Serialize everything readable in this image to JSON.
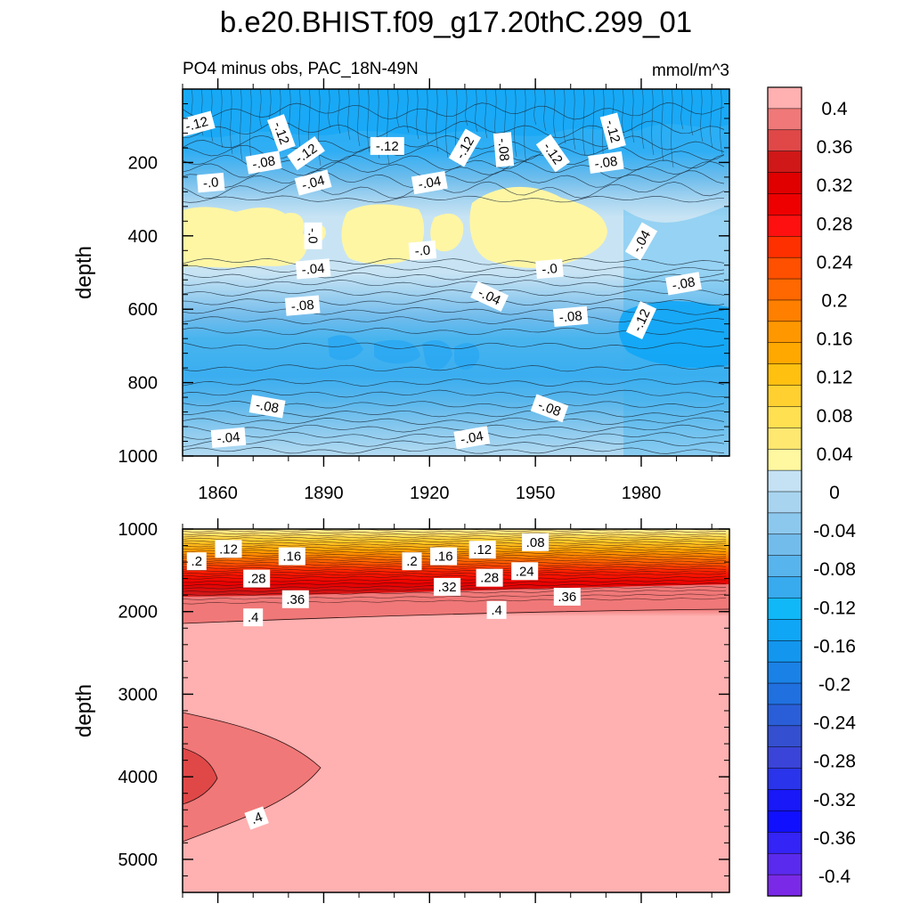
{
  "title": "b.e20.BHIST.f09_g17.20thC.299_01",
  "subtitle_left": "PO4 minus obs, PAC_18N-49N",
  "units": "mmol/m^3",
  "colorbar": {
    "labels": [
      "0.4",
      "0.36",
      "0.32",
      "0.28",
      "0.24",
      "0.2",
      "0.16",
      "0.12",
      "0.08",
      "0.04",
      "0",
      "-0.04",
      "-0.08",
      "-0.12",
      "-0.16",
      "-0.2",
      "-0.24",
      "-0.28",
      "-0.32",
      "-0.36",
      "-0.4"
    ],
    "colors_top_to_bottom": [
      "#ffb0b0",
      "#f07878",
      "#e04848",
      "#d01818",
      "#e00000",
      "#ee0000",
      "#ff1010",
      "#ff3000",
      "#ff5000",
      "#ff6800",
      "#ff8000",
      "#ff9800",
      "#ffa800",
      "#ffc010",
      "#ffd030",
      "#ffe050",
      "#ffe870",
      "#fff8a0",
      "#c4e2f4",
      "#a8d4f0",
      "#8cc8ee",
      "#72bcec",
      "#58b4ec",
      "#38aaee",
      "#10b8f8",
      "#10a6f6",
      "#1296ee",
      "#1a82e6",
      "#2070e0",
      "#2a5ed8",
      "#3450d0",
      "#3a44d8",
      "#2a34ea",
      "#1818f8",
      "#1010ff",
      "#3424f6",
      "#5a2aee",
      "#7a2ae6"
    ]
  },
  "chart_data": [
    {
      "type": "heatmap",
      "panel": "upper",
      "title": "PO4 minus obs, PAC_18N-49N",
      "units": "mmol/m^3",
      "ylabel": "depth",
      "xlim": [
        1850,
        2005
      ],
      "ylim": [
        1000,
        0
      ],
      "x_ticks": [
        "1860",
        "1890",
        "1920",
        "1950",
        "1980"
      ],
      "x_tick_values": [
        1860,
        1890,
        1920,
        1950,
        1980
      ],
      "y_ticks": [
        "200",
        "400",
        "600",
        "800",
        "1000"
      ],
      "y_tick_values": [
        200,
        400,
        600,
        800,
        1000
      ],
      "bands": [
        {
          "from": 0,
          "to": 170,
          "value": -0.13
        },
        {
          "from": 170,
          "to": 215,
          "value": -0.1
        },
        {
          "from": 215,
          "to": 260,
          "value": -0.06
        },
        {
          "from": 260,
          "to": 330,
          "value": -0.02
        },
        {
          "from": 330,
          "to": 470,
          "value": 0.01
        },
        {
          "from": 470,
          "to": 530,
          "value": -0.02
        },
        {
          "from": 530,
          "to": 580,
          "value": -0.05
        },
        {
          "from": 580,
          "to": 640,
          "value": -0.08
        },
        {
          "from": 640,
          "to": 780,
          "value": -0.11
        },
        {
          "from": 780,
          "to": 860,
          "value": -0.09
        },
        {
          "from": 860,
          "to": 920,
          "value": -0.07
        },
        {
          "from": 920,
          "to": 1000,
          "value": -0.04
        }
      ],
      "contour_labels": [
        {
          "text": "-.12",
          "x": 1854,
          "y": 95
        },
        {
          "text": "-.12",
          "x": 1878,
          "y": 120
        },
        {
          "text": "-.12",
          "x": 1885,
          "y": 175
        },
        {
          "text": "-.12",
          "x": 1908,
          "y": 155
        },
        {
          "text": "-.12",
          "x": 1930,
          "y": 160
        },
        {
          "text": "-.08",
          "x": 1941,
          "y": 165
        },
        {
          "text": "-.12",
          "x": 1955,
          "y": 175
        },
        {
          "text": "-.12",
          "x": 1972,
          "y": 115
        },
        {
          "text": "-.08",
          "x": 1873,
          "y": 200
        },
        {
          "text": "-.08",
          "x": 1970,
          "y": 200
        },
        {
          "text": "-.0",
          "x": 1858,
          "y": 255
        },
        {
          "text": "-.04",
          "x": 1887,
          "y": 255
        },
        {
          "text": "-.04",
          "x": 1920,
          "y": 255
        },
        {
          "text": "-.0",
          "x": 1887,
          "y": 400
        },
        {
          "text": "-.04",
          "x": 1980,
          "y": 415
        },
        {
          "text": "-.0",
          "x": 1918,
          "y": 440
        },
        {
          "text": "-.04",
          "x": 1887,
          "y": 490
        },
        {
          "text": "-.0",
          "x": 1954,
          "y": 490
        },
        {
          "text": "-.04",
          "x": 1937,
          "y": 565
        },
        {
          "text": "-.08",
          "x": 1992,
          "y": 530
        },
        {
          "text": "-.08",
          "x": 1884,
          "y": 590
        },
        {
          "text": "-.08",
          "x": 1960,
          "y": 620
        },
        {
          "text": "-.12",
          "x": 1980,
          "y": 630
        },
        {
          "text": "-.08",
          "x": 1874,
          "y": 865
        },
        {
          "text": "-.08",
          "x": 1954,
          "y": 870
        },
        {
          "text": "-.04",
          "x": 1863,
          "y": 950
        },
        {
          "text": "-.04",
          "x": 1932,
          "y": 950
        }
      ]
    },
    {
      "type": "heatmap",
      "panel": "lower",
      "ylabel": "depth",
      "xlim": [
        1850,
        2005
      ],
      "ylim": [
        5400,
        1000
      ],
      "y_ticks": [
        "1000",
        "2000",
        "3000",
        "4000",
        "5000"
      ],
      "y_tick_values": [
        1000,
        2000,
        3000,
        4000,
        5000
      ],
      "bands": [
        {
          "from": 1000,
          "to": 1150,
          "value": 0.1
        },
        {
          "from": 1150,
          "to": 1350,
          "value": 0.18
        },
        {
          "from": 1350,
          "to": 1600,
          "value": 0.28
        },
        {
          "from": 1600,
          "to": 1850,
          "value": 0.36
        },
        {
          "from": 1850,
          "to": 1990,
          "value": 0.39
        },
        {
          "from": 1990,
          "to": 5400,
          "value": 0.42
        }
      ],
      "contour_labels": [
        {
          "text": ".12",
          "x": 1863,
          "y": 1240
        },
        {
          "text": ".2",
          "x": 1854,
          "y": 1390
        },
        {
          "text": ".16",
          "x": 1881,
          "y": 1330
        },
        {
          "text": ".28",
          "x": 1871,
          "y": 1600
        },
        {
          "text": ".36",
          "x": 1882,
          "y": 1850
        },
        {
          "text": ".4",
          "x": 1870,
          "y": 2070
        },
        {
          "text": ".2",
          "x": 1915,
          "y": 1390
        },
        {
          "text": ".16",
          "x": 1924,
          "y": 1330
        },
        {
          "text": ".12",
          "x": 1935,
          "y": 1250
        },
        {
          "text": ".08",
          "x": 1950,
          "y": 1160
        },
        {
          "text": ".32",
          "x": 1925,
          "y": 1700
        },
        {
          "text": ".28",
          "x": 1937,
          "y": 1590
        },
        {
          "text": ".24",
          "x": 1947,
          "y": 1510
        },
        {
          "text": ".4",
          "x": 1939,
          "y": 1980
        },
        {
          "text": ".36",
          "x": 1959,
          "y": 1820
        },
        {
          "text": ".4",
          "x": 1871,
          "y": 4500
        }
      ]
    }
  ]
}
